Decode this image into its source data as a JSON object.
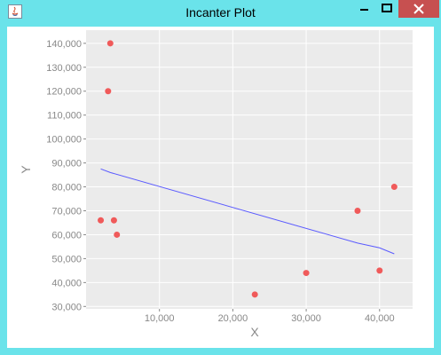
{
  "window": {
    "title": "Incanter Plot"
  },
  "colors": {
    "plot_background": "#ebebeb",
    "gridline": "#ffffff",
    "point": "#f05a5a",
    "line": "#5a5aff",
    "axis_text": "#888888",
    "titlebar": "#6ae3ea",
    "close_button": "#c75050"
  },
  "chart_data": {
    "type": "scatter",
    "title": "",
    "xlabel": "X",
    "ylabel": "Y",
    "xlim": [
      0,
      44500
    ],
    "ylim": [
      29000,
      145500
    ],
    "grid": true,
    "x_ticks": [
      10000,
      20000,
      30000,
      40000
    ],
    "x_tick_labels": [
      "10,000",
      "20,000",
      "30,000",
      "40,000"
    ],
    "y_ticks": [
      30000,
      40000,
      50000,
      60000,
      70000,
      80000,
      90000,
      100000,
      110000,
      120000,
      130000,
      140000
    ],
    "y_tick_labels": [
      "30,000",
      "40,000",
      "50,000",
      "60,000",
      "70,000",
      "80,000",
      "90,000",
      "100,000",
      "110,000",
      "120,000",
      "130,000",
      "140,000"
    ],
    "series": [
      {
        "type": "scatter",
        "x": [
          2000,
          3000,
          3300,
          3800,
          4200,
          23000,
          30000,
          37000,
          40000,
          42000
        ],
        "y": [
          66000,
          120000,
          140000,
          66000,
          60000,
          35000,
          44000,
          70000,
          45000,
          80000
        ]
      },
      {
        "type": "line",
        "x": [
          2000,
          3300,
          37000,
          40000,
          42000
        ],
        "y": [
          87500,
          86000,
          56500,
          54500,
          52000
        ]
      }
    ]
  }
}
